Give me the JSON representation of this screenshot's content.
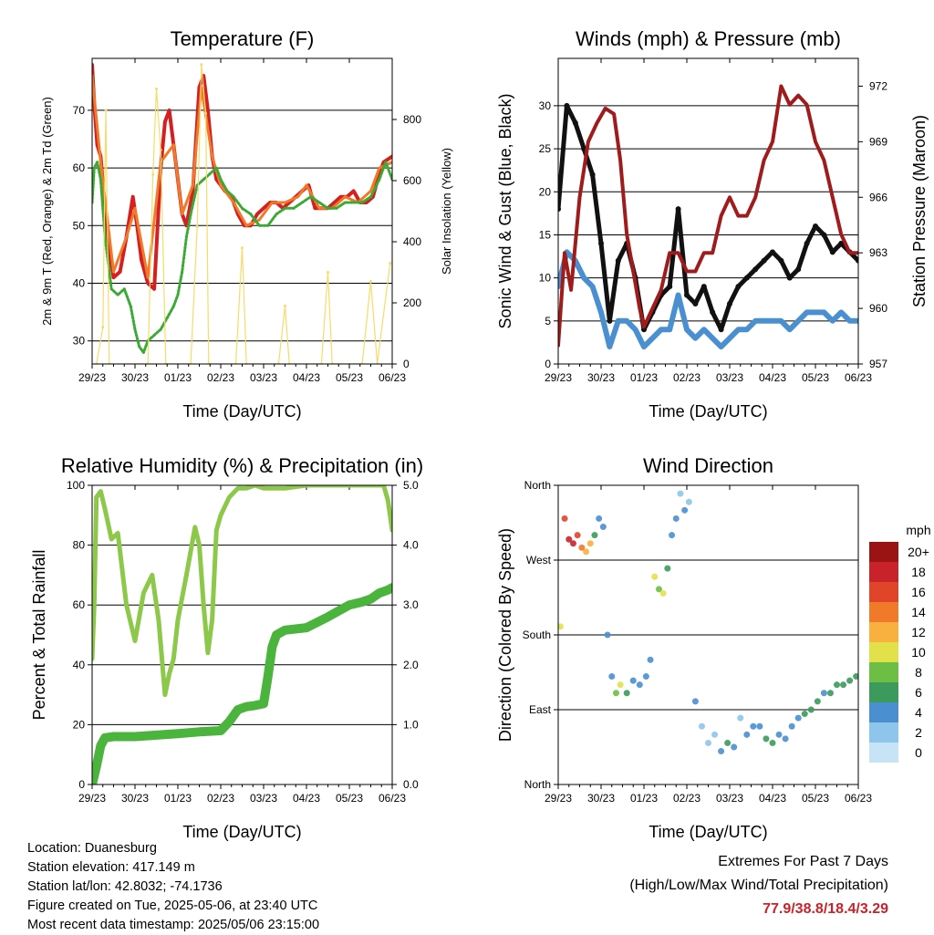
{
  "chart_data": [
    {
      "type": "line",
      "title": "Temperature (F)",
      "xlabel": "Time (Day/UTC)",
      "ylabel": "2m & 9m T (Red, Orange) & 2m Td (Green)",
      "ylabel_right": "Solar Insolation (Yellow)",
      "categories": [
        "29/23",
        "30/23",
        "01/23",
        "02/23",
        "03/23",
        "04/23",
        "05/23",
        "06/23"
      ],
      "ylim": [
        26,
        79
      ],
      "yticks": [
        30,
        40,
        50,
        60,
        70
      ],
      "ylim_right": [
        0,
        1000
      ],
      "yticks_right": [
        0,
        200,
        400,
        600,
        800
      ],
      "series": [
        {
          "name": "2m T",
          "color": "#d42020",
          "x": [
            0,
            0.06,
            0.12,
            0.2,
            0.35,
            0.5,
            0.65,
            0.8,
            0.95,
            1.05,
            1.15,
            1.3,
            1.45,
            1.6,
            1.7,
            1.8,
            1.9,
            2.0,
            2.1,
            2.2,
            2.35,
            2.5,
            2.6,
            2.7,
            2.8,
            2.9,
            3.0,
            3.1,
            3.25,
            3.4,
            3.55,
            3.7,
            3.85,
            4.0,
            4.15,
            4.3,
            4.45,
            4.6,
            4.75,
            4.9,
            5.05,
            5.2,
            5.35,
            5.5,
            5.65,
            5.8,
            5.95,
            6.1,
            6.25,
            6.4,
            6.55,
            6.7,
            6.8,
            7.0
          ],
          "y": [
            77.9,
            70,
            64,
            62,
            48,
            41,
            42,
            48,
            55,
            50,
            44,
            40,
            39,
            60,
            68,
            70,
            64,
            58,
            52,
            50,
            56,
            74,
            76,
            70,
            62,
            58,
            57,
            56,
            55,
            52,
            50,
            50,
            52,
            53,
            54,
            54,
            53,
            54,
            55,
            56,
            57,
            53,
            53,
            53,
            54,
            55,
            55,
            56,
            54,
            54,
            55,
            59,
            61,
            62
          ]
        },
        {
          "name": "9m T",
          "color": "#f07a2a",
          "x": [
            0,
            0.2,
            0.5,
            0.8,
            1.0,
            1.3,
            1.6,
            1.9,
            2.1,
            2.35,
            2.55,
            2.8,
            3.0,
            3.3,
            3.6,
            3.9,
            4.2,
            4.5,
            4.8,
            5.0,
            5.3,
            5.6,
            5.9,
            6.2,
            6.5,
            6.7,
            7.0
          ],
          "y": [
            76,
            61,
            42,
            48,
            53,
            41,
            61,
            64,
            52,
            57,
            74,
            62,
            57,
            54,
            50,
            51,
            54,
            54,
            55,
            57,
            53,
            53,
            55,
            54,
            56,
            60,
            61
          ]
        },
        {
          "name": "2m Td",
          "color": "#3aaa35",
          "x": [
            0,
            0.05,
            0.12,
            0.2,
            0.3,
            0.45,
            0.6,
            0.75,
            0.9,
            1.0,
            1.1,
            1.2,
            1.3,
            1.45,
            1.6,
            1.75,
            1.9,
            2.0,
            2.1,
            2.2,
            2.3,
            2.45,
            2.6,
            2.75,
            2.9,
            3.0,
            3.15,
            3.3,
            3.5,
            3.7,
            3.9,
            4.1,
            4.3,
            4.5,
            4.7,
            4.9,
            5.1,
            5.3,
            5.5,
            5.7,
            5.9,
            6.1,
            6.3,
            6.5,
            6.7,
            6.85,
            7.0
          ],
          "y": [
            54,
            60,
            61,
            58,
            48,
            39,
            38,
            39,
            36,
            32,
            29,
            28,
            30,
            31,
            32,
            34,
            36,
            38,
            42,
            48,
            52,
            57,
            58,
            59,
            60,
            58,
            56,
            55,
            53,
            52,
            50,
            50,
            52,
            53,
            53,
            54,
            55,
            54,
            53,
            53,
            54,
            54,
            54,
            55,
            58,
            61,
            58
          ]
        },
        {
          "name": "Solar Insolation",
          "axis": "right",
          "color": "#f5dc6a",
          "x": [
            0.1,
            0.25,
            0.32,
            0.4,
            1.3,
            1.42,
            1.5,
            1.6,
            1.72,
            2.3,
            2.45,
            2.55,
            2.65,
            2.72,
            3.35,
            3.5,
            3.6,
            4.35,
            4.5,
            4.6,
            5.35,
            5.5,
            5.6,
            6.3,
            6.5,
            6.65,
            6.95
          ],
          "y": [
            0,
            120,
            830,
            0,
            0,
            620,
            900,
            700,
            0,
            0,
            450,
            980,
            820,
            0,
            0,
            380,
            0,
            0,
            190,
            0,
            0,
            300,
            0,
            0,
            270,
            0,
            330
          ]
        }
      ]
    },
    {
      "type": "line",
      "title": "Winds (mph) & Pressure (mb)",
      "xlabel": "Time (Day/UTC)",
      "ylabel": "Sonic Wind & Gust (Blue, Black)",
      "ylabel_right": "Station Pressure (Maroon)",
      "categories": [
        "29/23",
        "30/23",
        "01/23",
        "02/23",
        "03/23",
        "04/23",
        "05/23",
        "06/23"
      ],
      "ylim": [
        0,
        35.5
      ],
      "yticks": [
        0,
        5,
        10,
        15,
        20,
        25,
        30
      ],
      "ylim_right": [
        957,
        973.5
      ],
      "yticks_right": [
        957,
        960,
        963,
        966,
        969,
        972
      ],
      "series": [
        {
          "name": "Gust",
          "color": "#111111",
          "x": [
            0,
            0.2,
            0.4,
            0.6,
            0.8,
            1.0,
            1.2,
            1.4,
            1.6,
            1.8,
            2.0,
            2.2,
            2.4,
            2.6,
            2.8,
            3.0,
            3.2,
            3.4,
            3.6,
            3.8,
            4.0,
            4.2,
            4.4,
            4.6,
            4.8,
            5.0,
            5.2,
            5.4,
            5.6,
            5.8,
            6.0,
            6.2,
            6.4,
            6.6,
            6.8,
            7.0
          ],
          "y": [
            18,
            30,
            28,
            25,
            22,
            14,
            5,
            12,
            14,
            10,
            4,
            6,
            8,
            9,
            18,
            8,
            7,
            9,
            6,
            4,
            7,
            9,
            10,
            11,
            12,
            13,
            12,
            10,
            11,
            14,
            16,
            15,
            13,
            14,
            13,
            12
          ]
        },
        {
          "name": "Wind",
          "color": "#4a90d0",
          "x": [
            0,
            0.2,
            0.4,
            0.6,
            0.8,
            1.0,
            1.2,
            1.4,
            1.6,
            1.8,
            2.0,
            2.2,
            2.4,
            2.6,
            2.8,
            3.0,
            3.2,
            3.4,
            3.6,
            3.8,
            4.0,
            4.2,
            4.4,
            4.6,
            4.8,
            5.0,
            5.2,
            5.4,
            5.6,
            5.8,
            6.0,
            6.2,
            6.4,
            6.6,
            6.8,
            7.0
          ],
          "y": [
            9,
            13,
            12,
            10,
            9,
            6,
            2,
            5,
            5,
            4,
            2,
            3,
            4,
            4,
            8,
            4,
            3,
            4,
            3,
            2,
            3,
            4,
            4,
            5,
            5,
            5,
            5,
            4,
            5,
            6,
            6,
            6,
            5,
            6,
            5,
            5
          ]
        },
        {
          "name": "Pressure",
          "axis": "right",
          "color": "#a01c1c",
          "x": [
            0,
            0.15,
            0.3,
            0.5,
            0.7,
            0.9,
            1.1,
            1.3,
            1.45,
            1.6,
            1.75,
            1.9,
            2.0,
            2.2,
            2.4,
            2.6,
            2.8,
            3.0,
            3.2,
            3.4,
            3.6,
            3.8,
            4.0,
            4.2,
            4.4,
            4.6,
            4.8,
            5.0,
            5.2,
            5.4,
            5.6,
            5.8,
            6.0,
            6.2,
            6.4,
            6.6,
            6.8,
            7.0
          ],
          "y": [
            958,
            963,
            961,
            966,
            969,
            970,
            970.8,
            970.5,
            968,
            964,
            962,
            960,
            959,
            960,
            961,
            963,
            963,
            962,
            962,
            963,
            963,
            965,
            966,
            965,
            965,
            966,
            968,
            969,
            972,
            971,
            971.5,
            971,
            969,
            968,
            966,
            964,
            963,
            963
          ]
        }
      ]
    },
    {
      "type": "line",
      "title": "Relative Humidity (%) & Precipitation (in)",
      "xlabel": "Time (Day/UTC)",
      "ylabel": "Percent & Total Rainfall",
      "categories": [
        "29/23",
        "30/23",
        "01/23",
        "02/23",
        "03/23",
        "04/23",
        "05/23",
        "06/23"
      ],
      "ylim": [
        0,
        100
      ],
      "yticks": [
        0,
        20,
        40,
        60,
        80,
        100
      ],
      "ylim_right": [
        0,
        5
      ],
      "yticks_right": [
        "0.0",
        "1.0",
        "2.0",
        "3.0",
        "4.0",
        "5.0"
      ],
      "series": [
        {
          "name": "RH",
          "color": "#8dc84a",
          "x": [
            0,
            0.05,
            0.1,
            0.2,
            0.3,
            0.45,
            0.6,
            0.8,
            1.0,
            1.2,
            1.4,
            1.55,
            1.7,
            1.8,
            1.9,
            2.0,
            2.2,
            2.4,
            2.5,
            2.6,
            2.7,
            2.8,
            2.9,
            3.0,
            3.2,
            3.4,
            3.6,
            3.8,
            4.0,
            4.5,
            5.0,
            5.5,
            6.0,
            6.5,
            6.8,
            6.9,
            7.0
          ],
          "y": [
            42,
            60,
            96,
            98,
            92,
            82,
            84,
            60,
            48,
            64,
            70,
            55,
            30,
            37,
            42,
            55,
            70,
            86,
            80,
            60,
            44,
            55,
            85,
            90,
            96,
            99,
            99,
            100,
            99,
            99,
            100,
            100,
            100,
            100,
            100,
            95,
            85
          ]
        },
        {
          "name": "Precipitation",
          "axis": "right",
          "color": "#4bb43c",
          "x": [
            0,
            0.1,
            0.2,
            0.3,
            0.5,
            1.0,
            2.0,
            2.5,
            3.0,
            3.2,
            3.4,
            3.6,
            3.8,
            4.0,
            4.1,
            4.2,
            4.3,
            4.5,
            5.0,
            5.5,
            6.0,
            6.3,
            6.5,
            6.7,
            6.9,
            7.0
          ],
          "y": [
            0,
            0.3,
            0.65,
            0.78,
            0.8,
            0.8,
            0.85,
            0.88,
            0.9,
            1.05,
            1.25,
            1.3,
            1.32,
            1.35,
            1.8,
            2.3,
            2.5,
            2.58,
            2.62,
            2.8,
            3.0,
            3.05,
            3.1,
            3.2,
            3.25,
            3.29
          ]
        }
      ]
    },
    {
      "type": "scatter",
      "title": "Wind Direction",
      "xlabel": "Time (Day/UTC)",
      "ylabel": "Direction (Colored By Speed)",
      "categories": [
        "29/23",
        "30/23",
        "01/23",
        "02/23",
        "03/23",
        "04/23",
        "05/23",
        "06/23"
      ],
      "ylim": [
        0,
        360
      ],
      "ytick_labels": [
        "North",
        "East",
        "South",
        "West",
        "North"
      ],
      "yticks": [
        0,
        90,
        180,
        270,
        360
      ],
      "colorbar": {
        "title": "mph",
        "labels": [
          "0",
          "2",
          "4",
          "6",
          "8",
          "10",
          "12",
          "14",
          "16",
          "18",
          "20+"
        ],
        "colors": [
          "#c6e4f6",
          "#8ec5ea",
          "#4a8fd0",
          "#3c9a5c",
          "#6cbf44",
          "#e3e14a",
          "#f8b13e",
          "#f07a2a",
          "#e0452a",
          "#c8232b",
          "#9a1414"
        ]
      },
      "points_x": [
        0.05,
        0.15,
        0.25,
        0.35,
        0.45,
        0.55,
        0.65,
        0.75,
        0.85,
        0.95,
        1.05,
        1.15,
        1.25,
        1.35,
        1.45,
        1.6,
        1.75,
        1.9,
        2.05,
        2.15,
        2.25,
        2.35,
        2.45,
        2.55,
        2.65,
        2.75,
        2.85,
        2.95,
        3.05,
        3.2,
        3.35,
        3.5,
        3.65,
        3.8,
        3.95,
        4.1,
        4.25,
        4.4,
        4.55,
        4.7,
        4.85,
        5.0,
        5.15,
        5.3,
        5.45,
        5.6,
        5.75,
        5.9,
        6.05,
        6.2,
        6.35,
        6.5,
        6.65,
        6.8,
        6.95
      ],
      "points_y": [
        190,
        320,
        295,
        290,
        300,
        285,
        280,
        290,
        300,
        320,
        310,
        180,
        130,
        110,
        120,
        110,
        125,
        120,
        130,
        150,
        250,
        235,
        230,
        260,
        300,
        320,
        350,
        330,
        340,
        100,
        70,
        50,
        60,
        40,
        50,
        45,
        80,
        60,
        70,
        70,
        55,
        50,
        60,
        55,
        70,
        80,
        85,
        90,
        100,
        110,
        110,
        120,
        120,
        125,
        130
      ],
      "points_speed": [
        9,
        16,
        17,
        18,
        16,
        14,
        12,
        11,
        5,
        4,
        3,
        3,
        4,
        7,
        9,
        5,
        4,
        4,
        3,
        3,
        10,
        8,
        9,
        6,
        4,
        3,
        2,
        3,
        1,
        3,
        2,
        2,
        1,
        3,
        5,
        4,
        2,
        3,
        3,
        4,
        5,
        5,
        4,
        3,
        3,
        4,
        5,
        6,
        5,
        4,
        5,
        6,
        6,
        5,
        6
      ]
    }
  ],
  "info": {
    "location": "Location: Duanesburg",
    "elevation": "Station elevation: 417.149 m",
    "latlon": "Station lat/lon: 42.8032; -74.1736",
    "created": "Figure created on Tue, 2025-05-06, at 23:40 UTC",
    "recent": "Most recent data timestamp: 2025/05/06 23:15:00"
  },
  "extremes": {
    "title": "Extremes For Past 7 Days",
    "subtitle": "(High/Low/Max Wind/Total Precipitation)",
    "values": "77.9/38.8/18.4/3.29"
  }
}
